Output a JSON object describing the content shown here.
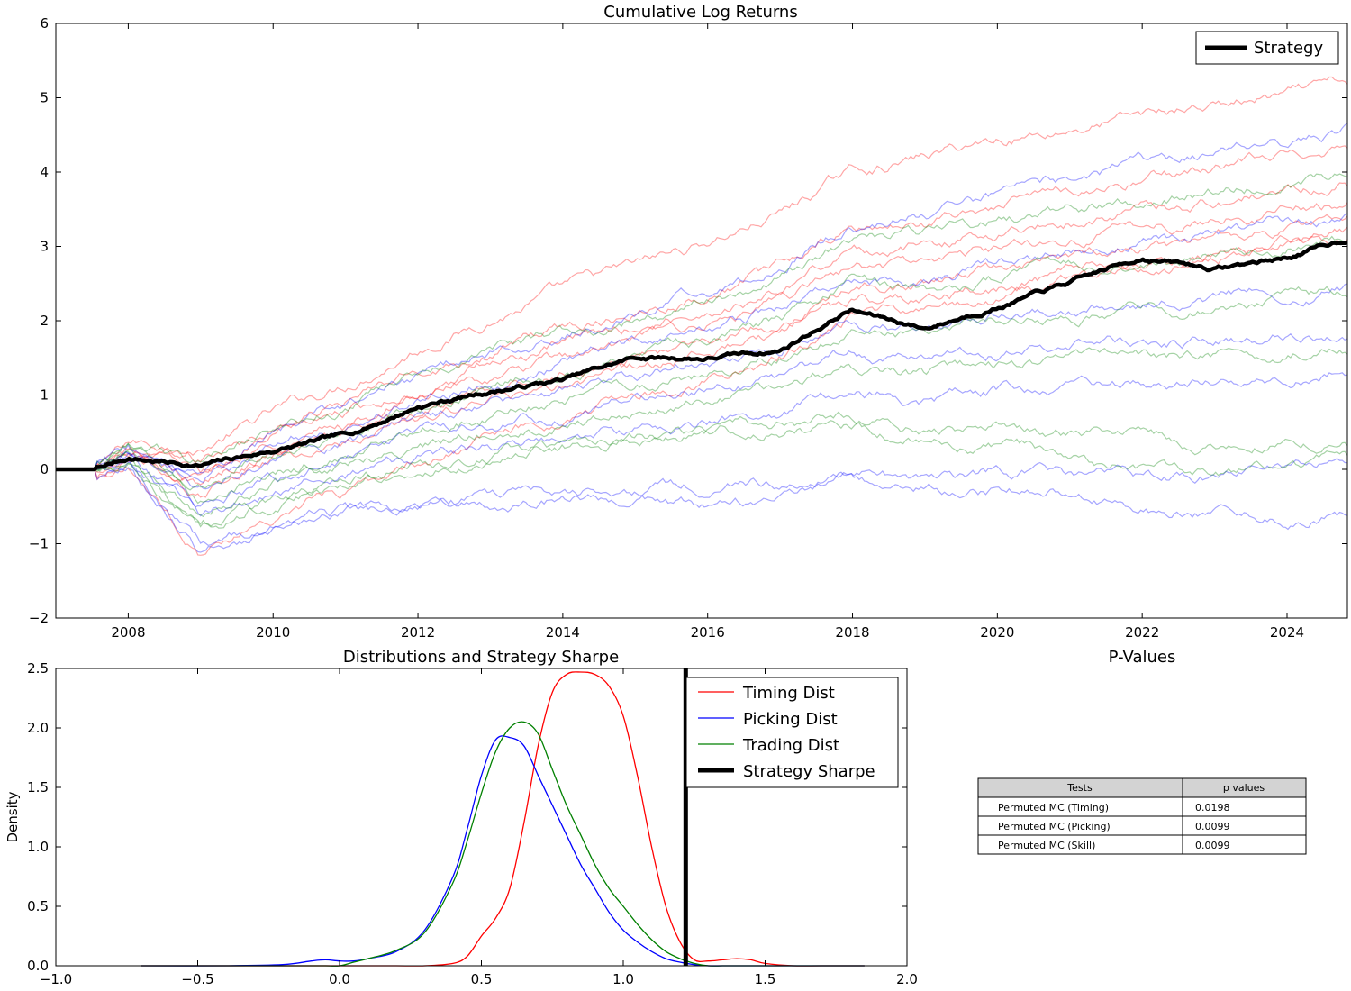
{
  "chart_data": [
    {
      "type": "line",
      "title": "Cumulative Log Returns",
      "xlabel": "",
      "ylabel": "",
      "xlim": [
        "2007-01-01",
        "2024-11-01"
      ],
      "ylim": [
        -2,
        6
      ],
      "x_ticks": [
        "2008",
        "2010",
        "2012",
        "2014",
        "2016",
        "2018",
        "2020",
        "2022",
        "2024"
      ],
      "y_ticks": [
        "−2",
        "−1",
        "0",
        "1",
        "2",
        "3",
        "4",
        "5",
        "6"
      ],
      "legend": {
        "position": "top-right",
        "entries": [
          "Strategy"
        ]
      },
      "colors": {
        "strategy": "#000000",
        "timing": "#ff0000",
        "picking": "#0000ff",
        "trading": "#008000"
      },
      "strategy_series": {
        "name": "Strategy",
        "x": [
          "2007-01-01",
          "2007-08-01",
          "2008-01-01",
          "2009-01-01",
          "2010-01-01",
          "2011-01-01",
          "2012-01-01",
          "2013-01-01",
          "2014-01-01",
          "2015-01-01",
          "2016-01-01",
          "2017-01-01",
          "2017-12-15",
          "2019-01-01",
          "2020-01-01",
          "2021-01-01",
          "2022-01-01",
          "2023-01-01",
          "2024-01-01",
          "2024-11-01"
        ],
        "values": [
          0.0,
          0.0,
          0.15,
          0.05,
          0.25,
          0.45,
          0.85,
          1.05,
          1.2,
          1.5,
          1.5,
          1.6,
          2.15,
          1.9,
          2.2,
          2.5,
          2.85,
          2.7,
          2.85,
          3.1
        ]
      },
      "simulated_series": [
        {
          "group": "timing",
          "values": [
            0.0,
            0.0,
            0.35,
            0.3,
            0.75,
            1.15,
            1.65,
            2.05,
            2.4,
            2.7,
            3.05,
            3.45,
            4.0,
            4.2,
            4.45,
            4.6,
            4.75,
            4.9,
            5.0,
            5.15
          ]
        },
        {
          "group": "timing",
          "values": [
            0.0,
            0.0,
            0.3,
            0.1,
            0.55,
            0.9,
            1.3,
            1.6,
            1.9,
            2.15,
            2.4,
            2.7,
            3.2,
            3.3,
            3.55,
            3.75,
            3.9,
            4.05,
            4.2,
            4.4
          ]
        },
        {
          "group": "timing",
          "values": [
            0.0,
            0.0,
            0.3,
            0.0,
            0.45,
            0.75,
            1.1,
            1.4,
            1.65,
            1.9,
            2.15,
            2.4,
            2.95,
            3.0,
            3.2,
            3.35,
            3.5,
            3.6,
            3.75,
            3.85
          ]
        },
        {
          "group": "timing",
          "values": [
            0.0,
            0.0,
            0.25,
            -0.1,
            0.35,
            0.6,
            0.95,
            1.2,
            1.45,
            1.7,
            1.95,
            2.2,
            2.7,
            2.75,
            2.95,
            3.1,
            3.25,
            3.35,
            3.5,
            3.6
          ]
        },
        {
          "group": "timing",
          "values": [
            0.0,
            0.0,
            0.2,
            -0.2,
            0.25,
            0.5,
            0.8,
            1.05,
            1.3,
            1.55,
            1.75,
            2.0,
            2.45,
            2.5,
            2.7,
            2.85,
            3.0,
            3.1,
            3.25,
            3.35
          ]
        },
        {
          "group": "timing",
          "values": [
            0.0,
            0.0,
            0.2,
            -0.3,
            0.15,
            0.35,
            0.65,
            0.9,
            1.1,
            1.35,
            1.55,
            1.8,
            2.25,
            2.3,
            2.45,
            2.6,
            2.75,
            2.85,
            3.0,
            3.1
          ]
        },
        {
          "group": "timing",
          "values": [
            0.0,
            0.0,
            0.1,
            -1.1,
            -0.6,
            -0.3,
            0.1,
            0.4,
            0.7,
            0.95,
            1.2,
            1.5,
            2.0,
            2.1,
            2.3,
            2.5,
            2.7,
            2.85,
            3.0,
            3.2
          ]
        },
        {
          "group": "picking",
          "values": [
            0.0,
            0.0,
            0.3,
            0.1,
            0.5,
            0.85,
            1.25,
            1.55,
            1.85,
            2.1,
            2.4,
            2.75,
            3.3,
            3.45,
            3.7,
            3.9,
            4.1,
            4.25,
            4.4,
            4.6
          ]
        },
        {
          "group": "picking",
          "values": [
            0.0,
            0.0,
            0.25,
            -0.1,
            0.3,
            0.6,
            0.95,
            1.2,
            1.45,
            1.7,
            1.9,
            2.15,
            2.55,
            2.55,
            2.75,
            2.9,
            3.05,
            3.15,
            3.3,
            3.4
          ]
        },
        {
          "group": "picking",
          "values": [
            0.0,
            0.0,
            0.2,
            -0.3,
            0.1,
            0.35,
            0.65,
            0.85,
            1.05,
            1.25,
            1.4,
            1.6,
            1.95,
            1.9,
            2.05,
            2.15,
            2.25,
            2.3,
            2.4,
            2.45
          ]
        },
        {
          "group": "picking",
          "values": [
            0.0,
            0.0,
            0.15,
            -0.5,
            -0.1,
            0.15,
            0.4,
            0.6,
            0.75,
            0.9,
            1.05,
            1.2,
            1.5,
            1.45,
            1.55,
            1.65,
            1.7,
            1.75,
            1.8,
            1.85
          ]
        },
        {
          "group": "picking",
          "values": [
            0.0,
            0.0,
            0.1,
            -0.7,
            -0.3,
            -0.1,
            0.15,
            0.3,
            0.4,
            0.55,
            0.65,
            0.8,
            1.05,
            0.95,
            1.05,
            1.1,
            1.15,
            1.2,
            1.25,
            1.3
          ]
        },
        {
          "group": "picking",
          "values": [
            0.0,
            0.0,
            0.05,
            -1.0,
            -0.75,
            -0.6,
            -0.45,
            -0.35,
            -0.3,
            -0.25,
            -0.2,
            -0.15,
            0.0,
            -0.1,
            -0.05,
            -0.1,
            -0.1,
            -0.05,
            0.05,
            0.1
          ]
        },
        {
          "group": "picking",
          "values": [
            0.0,
            0.0,
            0.05,
            -1.1,
            -0.8,
            -0.6,
            -0.5,
            -0.45,
            -0.4,
            -0.35,
            -0.5,
            -0.45,
            -0.1,
            -0.2,
            -0.3,
            -0.3,
            -0.55,
            -0.55,
            -0.6,
            -0.6
          ]
        },
        {
          "group": "trading",
          "values": [
            0.0,
            0.0,
            0.3,
            0.05,
            0.5,
            0.85,
            1.25,
            1.55,
            1.8,
            2.05,
            2.3,
            2.6,
            3.1,
            3.15,
            3.35,
            3.5,
            3.65,
            3.75,
            3.85,
            3.95
          ]
        },
        {
          "group": "trading",
          "values": [
            0.0,
            0.0,
            0.25,
            -0.2,
            0.25,
            0.55,
            0.85,
            1.1,
            1.35,
            1.55,
            1.75,
            2.0,
            2.45,
            2.4,
            2.55,
            2.7,
            2.8,
            2.9,
            3.0,
            3.1
          ]
        },
        {
          "group": "trading",
          "values": [
            0.0,
            0.0,
            0.2,
            -0.4,
            0.0,
            0.25,
            0.55,
            0.75,
            0.95,
            1.15,
            1.3,
            1.5,
            1.85,
            1.8,
            1.95,
            2.05,
            2.15,
            2.2,
            2.3,
            2.4
          ]
        },
        {
          "group": "trading",
          "values": [
            0.0,
            0.0,
            0.15,
            -0.6,
            -0.2,
            0.05,
            0.3,
            0.5,
            0.65,
            0.8,
            0.9,
            1.05,
            1.35,
            1.25,
            1.35,
            1.45,
            1.5,
            1.55,
            1.6,
            1.65
          ]
        },
        {
          "group": "trading",
          "values": [
            0.0,
            0.0,
            0.1,
            -0.8,
            -0.45,
            -0.2,
            0.05,
            0.2,
            0.3,
            0.4,
            0.5,
            0.6,
            0.75,
            0.55,
            0.55,
            0.5,
            0.45,
            0.35,
            0.4,
            0.35
          ]
        },
        {
          "group": "trading",
          "values": [
            0.0,
            0.0,
            0.1,
            -0.75,
            -0.4,
            -0.2,
            0.05,
            0.2,
            0.3,
            0.4,
            0.5,
            0.55,
            0.6,
            0.4,
            0.3,
            0.2,
            0.05,
            0.0,
            0.05,
            0.1
          ]
        }
      ]
    },
    {
      "type": "line",
      "title": "Distributions and Strategy Sharpe",
      "xlabel": "",
      "ylabel": "Density",
      "xlim": [
        -1.0,
        2.0
      ],
      "ylim": [
        0.0,
        2.5
      ],
      "x_ticks": [
        "−1.0",
        "−0.5",
        "0.0",
        "0.5",
        "1.0",
        "1.5",
        "2.0"
      ],
      "y_ticks": [
        "0.0",
        "0.5",
        "1.0",
        "1.5",
        "2.0",
        "2.5"
      ],
      "legend": {
        "position": "top-right"
      },
      "x": [
        -0.7,
        -0.4,
        -0.2,
        -0.1,
        -0.05,
        0.0,
        0.05,
        0.1,
        0.2,
        0.3,
        0.4,
        0.45,
        0.5,
        0.55,
        0.6,
        0.65,
        0.7,
        0.75,
        0.8,
        0.85,
        0.9,
        0.95,
        1.0,
        1.05,
        1.1,
        1.15,
        1.2,
        1.25,
        1.3,
        1.35,
        1.4,
        1.45,
        1.5,
        1.6,
        1.7,
        1.85
      ],
      "series": [
        {
          "name": "Timing Dist",
          "color": "#ff0000",
          "values": [
            0,
            0,
            0,
            0,
            0,
            0,
            0,
            0,
            0,
            0,
            0.02,
            0.08,
            0.25,
            0.4,
            0.65,
            1.2,
            1.85,
            2.3,
            2.45,
            2.47,
            2.45,
            2.35,
            2.1,
            1.6,
            1.0,
            0.5,
            0.2,
            0.05,
            0.04,
            0.05,
            0.06,
            0.05,
            0.02,
            0,
            0,
            0
          ]
        },
        {
          "name": "Picking Dist",
          "color": "#0000ff",
          "values": [
            0,
            0,
            0.01,
            0.04,
            0.05,
            0.04,
            0.04,
            0.06,
            0.12,
            0.3,
            0.75,
            1.15,
            1.6,
            1.9,
            1.92,
            1.85,
            1.6,
            1.35,
            1.1,
            0.85,
            0.65,
            0.45,
            0.3,
            0.2,
            0.12,
            0.06,
            0.03,
            0.01,
            0,
            0,
            0,
            0,
            0,
            0,
            0,
            0
          ]
        },
        {
          "name": "Trading Dist",
          "color": "#008000",
          "values": [
            0,
            0,
            0,
            0,
            0,
            0,
            0.03,
            0.06,
            0.13,
            0.28,
            0.7,
            1.05,
            1.45,
            1.8,
            2.0,
            2.05,
            1.95,
            1.65,
            1.35,
            1.1,
            0.85,
            0.65,
            0.5,
            0.35,
            0.22,
            0.12,
            0.06,
            0.02,
            0,
            0,
            0,
            0,
            0,
            0,
            0,
            0
          ]
        }
      ],
      "strategy_sharpe": {
        "name": "Strategy Sharpe",
        "value": 1.22,
        "color": "#000000"
      }
    }
  ],
  "pvalues": {
    "title": "P-Values",
    "headers": [
      "Tests",
      "p values"
    ],
    "header_color": "#d3d3d3",
    "rows": [
      {
        "test": "Permuted MC (Timing)",
        "value": "0.0198"
      },
      {
        "test": "Permuted MC (Picking)",
        "value": "0.0099"
      },
      {
        "test": "Permuted MC (Skill)",
        "value": "0.0099"
      }
    ]
  }
}
